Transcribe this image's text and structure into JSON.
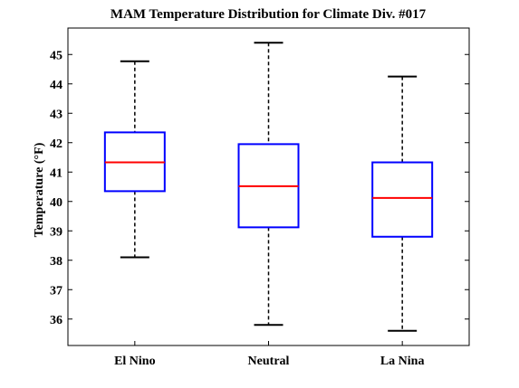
{
  "chart_data": {
    "type": "box",
    "title": "MAM Temperature Distribution for Climate Div. #017",
    "xlabel": "",
    "ylabel": "Temperature (°F)",
    "ylim": [
      35.1,
      45.9
    ],
    "yticks": [
      36,
      37,
      38,
      39,
      40,
      41,
      42,
      43,
      44,
      45
    ],
    "grid": false,
    "categories": [
      "El Nino",
      "Neutral",
      "La Nina"
    ],
    "boxes": [
      {
        "category": "El Nino",
        "whisker_low": 38.1,
        "q1": 40.35,
        "median": 41.33,
        "q3": 42.35,
        "whisker_high": 44.77
      },
      {
        "category": "Neutral",
        "whisker_low": 35.8,
        "q1": 39.12,
        "median": 40.52,
        "q3": 41.95,
        "whisker_high": 45.4
      },
      {
        "category": "La Nina",
        "whisker_low": 35.6,
        "q1": 38.8,
        "median": 40.12,
        "q3": 41.33,
        "whisker_high": 44.25
      }
    ],
    "colors": {
      "box": "#0000ff",
      "median": "#ff0000",
      "whisker": "#000000"
    }
  }
}
